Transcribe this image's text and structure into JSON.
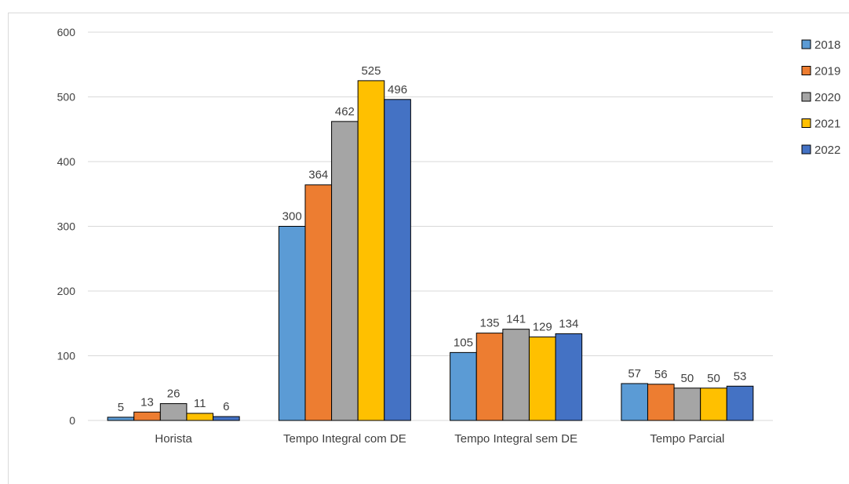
{
  "chart_data": {
    "type": "bar",
    "title": "",
    "xlabel": "",
    "ylabel": "",
    "ylim": [
      0,
      600
    ],
    "yticks": [
      0,
      100,
      200,
      300,
      400,
      500,
      600
    ],
    "grid": true,
    "legend_position": "right",
    "categories": [
      "Horista",
      "Tempo Integral com DE",
      "Tempo Integral sem DE",
      "Tempo Parcial"
    ],
    "series": [
      {
        "name": "2018",
        "color": "#5b9bd5",
        "values": [
          5,
          300,
          105,
          57
        ]
      },
      {
        "name": "2019",
        "color": "#ed7d31",
        "values": [
          13,
          364,
          135,
          56
        ]
      },
      {
        "name": "2020",
        "color": "#a5a5a5",
        "values": [
          26,
          462,
          141,
          50
        ]
      },
      {
        "name": "2021",
        "color": "#ffc000",
        "values": [
          11,
          525,
          129,
          50
        ]
      },
      {
        "name": "2022",
        "color": "#4472c4",
        "values": [
          6,
          496,
          134,
          53
        ]
      }
    ]
  }
}
